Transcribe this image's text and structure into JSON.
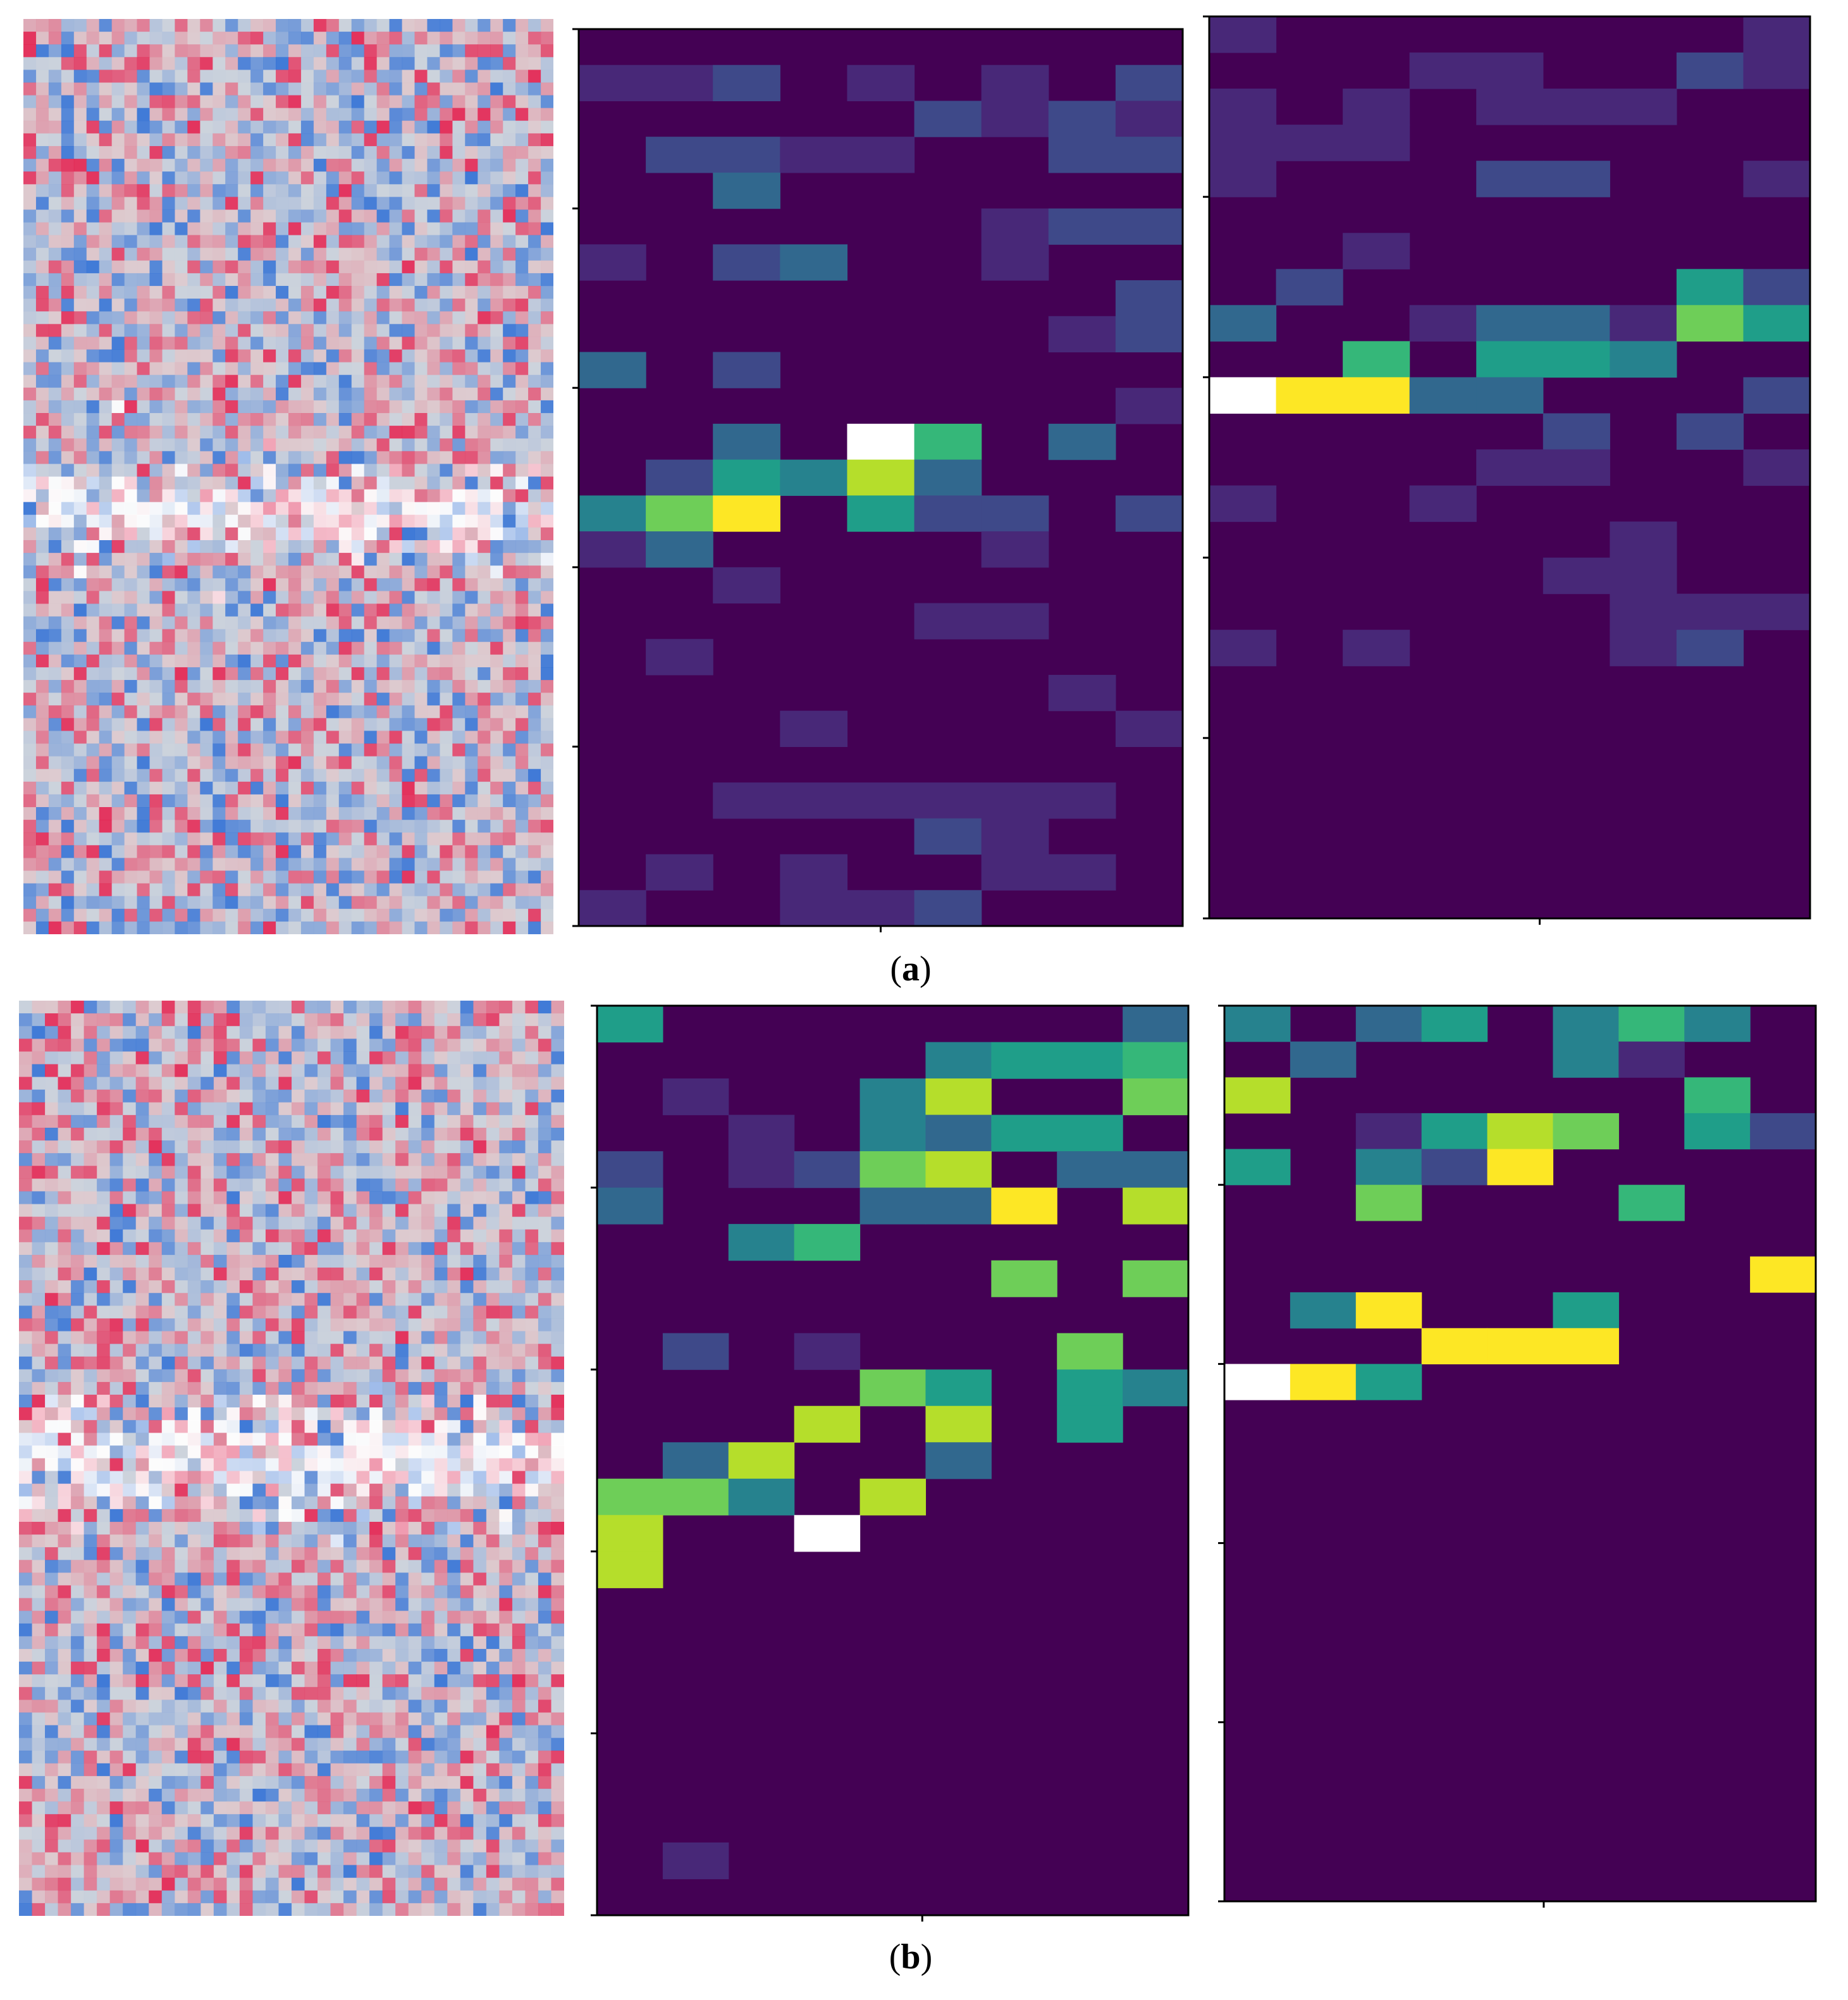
{
  "figure": {
    "caption_a": "a",
    "caption_b": "b"
  },
  "palette": {
    "saliency": [
      "#2f6fd6",
      "#ffffff",
      "#e3204f",
      "#dcdcdc"
    ],
    "viridis": [
      "#440154",
      "#482878",
      "#3e4989",
      "#31688e",
      "#26828e",
      "#1f9e89",
      "#35b779",
      "#6ece58",
      "#b5de2b",
      "#fde725",
      "#ffffff"
    ]
  },
  "chart_data": [
    {
      "panel": "a",
      "type": "heatmap",
      "cols": 9,
      "rows": 25,
      "cells": [
        [
          0,
          1,
          1
        ],
        [
          1,
          1,
          1
        ],
        [
          2,
          1,
          2
        ],
        [
          4,
          1,
          1
        ],
        [
          6,
          1,
          1
        ],
        [
          8,
          1,
          2
        ],
        [
          5,
          2,
          2
        ],
        [
          6,
          2,
          1
        ],
        [
          7,
          2,
          2
        ],
        [
          8,
          2,
          1
        ],
        [
          1,
          3,
          2
        ],
        [
          2,
          3,
          2
        ],
        [
          3,
          3,
          1
        ],
        [
          4,
          3,
          1
        ],
        [
          7,
          3,
          2
        ],
        [
          8,
          3,
          2
        ],
        [
          2,
          4,
          3
        ],
        [
          6,
          5,
          1
        ],
        [
          7,
          5,
          2
        ],
        [
          8,
          5,
          2
        ],
        [
          0,
          6,
          1
        ],
        [
          2,
          6,
          2
        ],
        [
          3,
          6,
          3
        ],
        [
          6,
          6,
          1
        ],
        [
          8,
          7,
          2
        ],
        [
          7,
          8,
          1
        ],
        [
          8,
          8,
          2
        ],
        [
          0,
          9,
          3
        ],
        [
          2,
          9,
          2
        ],
        [
          8,
          10,
          1
        ],
        [
          2,
          11,
          3
        ],
        [
          4,
          11,
          10
        ],
        [
          5,
          11,
          6
        ],
        [
          7,
          11,
          3
        ],
        [
          1,
          12,
          2
        ],
        [
          2,
          12,
          5
        ],
        [
          3,
          12,
          4
        ],
        [
          4,
          12,
          8
        ],
        [
          5,
          12,
          3
        ],
        [
          0,
          13,
          4
        ],
        [
          1,
          13,
          7
        ],
        [
          2,
          13,
          9
        ],
        [
          4,
          13,
          5
        ],
        [
          5,
          13,
          2
        ],
        [
          6,
          13,
          2
        ],
        [
          8,
          13,
          2
        ],
        [
          0,
          14,
          1
        ],
        [
          1,
          14,
          3
        ],
        [
          6,
          14,
          1
        ],
        [
          2,
          15,
          1
        ],
        [
          5,
          16,
          1
        ],
        [
          6,
          16,
          1
        ],
        [
          1,
          17,
          1
        ],
        [
          7,
          18,
          1
        ],
        [
          3,
          19,
          1
        ],
        [
          8,
          19,
          1
        ],
        [
          2,
          21,
          1
        ],
        [
          3,
          21,
          1
        ],
        [
          4,
          21,
          1
        ],
        [
          5,
          21,
          1
        ],
        [
          6,
          21,
          1
        ],
        [
          7,
          21,
          1
        ],
        [
          5,
          22,
          2
        ],
        [
          6,
          22,
          1
        ],
        [
          1,
          23,
          1
        ],
        [
          3,
          23,
          1
        ],
        [
          6,
          23,
          1
        ],
        [
          7,
          23,
          1
        ],
        [
          0,
          24,
          1
        ],
        [
          3,
          24,
          1
        ],
        [
          4,
          24,
          1
        ],
        [
          5,
          24,
          2
        ]
      ]
    },
    {
      "panel": "a",
      "type": "heatmap",
      "cols": 9,
      "rows": 25,
      "cells": [
        [
          0,
          0,
          1
        ],
        [
          8,
          0,
          1
        ],
        [
          3,
          1,
          1
        ],
        [
          4,
          1,
          1
        ],
        [
          7,
          1,
          2
        ],
        [
          8,
          1,
          1
        ],
        [
          0,
          2,
          1
        ],
        [
          2,
          2,
          1
        ],
        [
          4,
          2,
          1
        ],
        [
          5,
          2,
          1
        ],
        [
          6,
          2,
          1
        ],
        [
          0,
          3,
          1
        ],
        [
          1,
          3,
          1
        ],
        [
          2,
          3,
          1
        ],
        [
          0,
          4,
          1
        ],
        [
          4,
          4,
          2
        ],
        [
          5,
          4,
          2
        ],
        [
          8,
          4,
          1
        ],
        [
          2,
          6,
          1
        ],
        [
          1,
          7,
          2
        ],
        [
          7,
          7,
          5
        ],
        [
          8,
          7,
          2
        ],
        [
          0,
          8,
          3
        ],
        [
          3,
          8,
          1
        ],
        [
          4,
          8,
          3
        ],
        [
          5,
          8,
          3
        ],
        [
          6,
          8,
          1
        ],
        [
          7,
          8,
          7
        ],
        [
          8,
          8,
          5
        ],
        [
          2,
          9,
          6
        ],
        [
          4,
          9,
          5
        ],
        [
          5,
          9,
          5
        ],
        [
          6,
          9,
          4
        ],
        [
          0,
          10,
          10
        ],
        [
          1,
          10,
          9
        ],
        [
          2,
          10,
          9
        ],
        [
          3,
          10,
          3
        ],
        [
          4,
          10,
          3
        ],
        [
          8,
          10,
          2
        ],
        [
          5,
          11,
          2
        ],
        [
          7,
          11,
          2
        ],
        [
          4,
          12,
          1
        ],
        [
          5,
          12,
          1
        ],
        [
          8,
          12,
          1
        ],
        [
          0,
          13,
          1
        ],
        [
          3,
          13,
          1
        ],
        [
          6,
          14,
          1
        ],
        [
          5,
          15,
          1
        ],
        [
          6,
          15,
          1
        ],
        [
          6,
          16,
          1
        ],
        [
          7,
          16,
          1
        ],
        [
          8,
          16,
          1
        ],
        [
          0,
          17,
          1
        ],
        [
          2,
          17,
          1
        ],
        [
          6,
          17,
          1
        ],
        [
          7,
          17,
          2
        ]
      ]
    },
    {
      "panel": "b",
      "type": "heatmap",
      "cols": 9,
      "rows": 25,
      "cells": [
        [
          0,
          0,
          5
        ],
        [
          8,
          0,
          3
        ],
        [
          5,
          1,
          4
        ],
        [
          6,
          1,
          5
        ],
        [
          7,
          1,
          5
        ],
        [
          8,
          1,
          6
        ],
        [
          1,
          2,
          1
        ],
        [
          4,
          2,
          4
        ],
        [
          5,
          2,
          8
        ],
        [
          8,
          2,
          7
        ],
        [
          2,
          3,
          1
        ],
        [
          4,
          3,
          4
        ],
        [
          5,
          3,
          3
        ],
        [
          6,
          3,
          5
        ],
        [
          7,
          3,
          5
        ],
        [
          0,
          4,
          2
        ],
        [
          2,
          4,
          1
        ],
        [
          3,
          4,
          2
        ],
        [
          4,
          4,
          7
        ],
        [
          5,
          4,
          8
        ],
        [
          7,
          4,
          3
        ],
        [
          8,
          4,
          3
        ],
        [
          0,
          5,
          3
        ],
        [
          4,
          5,
          3
        ],
        [
          5,
          5,
          3
        ],
        [
          6,
          5,
          9
        ],
        [
          8,
          5,
          8
        ],
        [
          2,
          6,
          4
        ],
        [
          3,
          6,
          6
        ],
        [
          6,
          7,
          7
        ],
        [
          8,
          7,
          7
        ],
        [
          1,
          9,
          2
        ],
        [
          3,
          9,
          1
        ],
        [
          7,
          9,
          7
        ],
        [
          4,
          10,
          7
        ],
        [
          5,
          10,
          5
        ],
        [
          7,
          10,
          5
        ],
        [
          8,
          10,
          4
        ],
        [
          3,
          11,
          8
        ],
        [
          5,
          11,
          8
        ],
        [
          7,
          11,
          5
        ],
        [
          1,
          12,
          3
        ],
        [
          2,
          12,
          8
        ],
        [
          5,
          12,
          3
        ],
        [
          0,
          13,
          7
        ],
        [
          1,
          13,
          7
        ],
        [
          2,
          13,
          4
        ],
        [
          4,
          13,
          8
        ],
        [
          0,
          14,
          8
        ],
        [
          3,
          14,
          10
        ],
        [
          0,
          15,
          8
        ],
        [
          1,
          23,
          1
        ]
      ]
    },
    {
      "panel": "b",
      "type": "heatmap",
      "cols": 9,
      "rows": 25,
      "cells": [
        [
          0,
          0,
          4
        ],
        [
          2,
          0,
          3
        ],
        [
          3,
          0,
          5
        ],
        [
          5,
          0,
          4
        ],
        [
          6,
          0,
          6
        ],
        [
          7,
          0,
          4
        ],
        [
          1,
          1,
          3
        ],
        [
          5,
          1,
          4
        ],
        [
          6,
          1,
          1
        ],
        [
          0,
          2,
          8
        ],
        [
          7,
          2,
          6
        ],
        [
          2,
          3,
          1
        ],
        [
          3,
          3,
          5
        ],
        [
          4,
          3,
          8
        ],
        [
          5,
          3,
          7
        ],
        [
          7,
          3,
          5
        ],
        [
          8,
          3,
          2
        ],
        [
          0,
          4,
          5
        ],
        [
          2,
          4,
          4
        ],
        [
          3,
          4,
          2
        ],
        [
          4,
          4,
          9
        ],
        [
          2,
          5,
          7
        ],
        [
          6,
          5,
          6
        ],
        [
          8,
          7,
          9
        ],
        [
          1,
          8,
          4
        ],
        [
          2,
          8,
          9
        ],
        [
          5,
          8,
          5
        ],
        [
          3,
          9,
          9
        ],
        [
          4,
          9,
          9
        ],
        [
          5,
          9,
          9
        ],
        [
          0,
          10,
          10
        ],
        [
          1,
          10,
          9
        ],
        [
          2,
          10,
          5
        ]
      ]
    }
  ]
}
